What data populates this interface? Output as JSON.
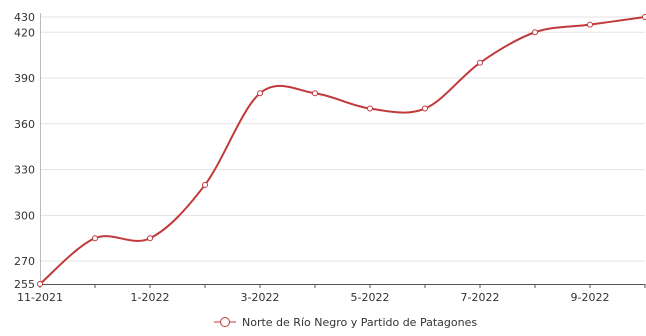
{
  "chart_data": {
    "type": "line",
    "title": "",
    "xlabel": "",
    "ylabel": "",
    "x": [
      "11-2021",
      "12-2021",
      "1-2022",
      "2-2022",
      "3-2022",
      "4-2022",
      "5-2022",
      "6-2022",
      "7-2022",
      "8-2022",
      "9-2022",
      "10-2022"
    ],
    "x_tick_labels": [
      "11-2021",
      "1-2022",
      "3-2022",
      "5-2022",
      "7-2022",
      "9-2022"
    ],
    "y_ticks": [
      255,
      270,
      300,
      330,
      360,
      390,
      420,
      430
    ],
    "ylim": [
      255,
      430
    ],
    "grid": true,
    "legend_position": "bottom",
    "series": [
      {
        "name": "Norte de Río Negro y Partido de Patagones",
        "color": "#c0393b",
        "values": [
          255,
          285,
          285,
          320,
          380,
          380,
          370,
          370,
          400,
          420,
          425,
          430
        ]
      }
    ]
  }
}
